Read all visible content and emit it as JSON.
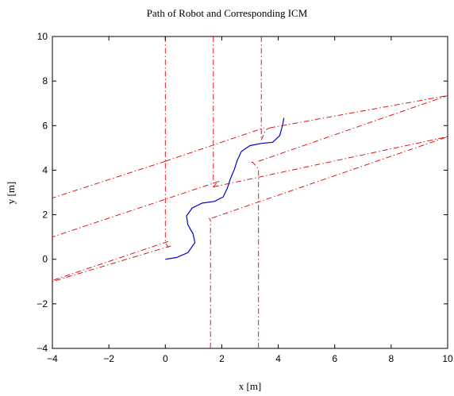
{
  "chart_data": {
    "type": "line",
    "title": "Path of Robot and Corresponding ICM",
    "xlabel": "x [m]",
    "ylabel": "y [m]",
    "xlim": [
      -4,
      10
    ],
    "ylim": [
      -4,
      10
    ],
    "x_ticks": [
      -4,
      -2,
      0,
      2,
      4,
      6,
      8,
      10
    ],
    "y_ticks": [
      -4,
      -2,
      0,
      2,
      4,
      6,
      8,
      10
    ],
    "x_tick_labels": [
      "−4",
      "−2",
      "0",
      "2",
      "4",
      "6",
      "8",
      "10"
    ],
    "y_tick_labels": [
      "−4",
      "−2",
      "0",
      "2",
      "4",
      "6",
      "8",
      "10"
    ],
    "grid": false,
    "legend": "none",
    "series": [
      {
        "role": "robot-path",
        "color": "#0000cc",
        "style": "solid",
        "points": [
          [
            0,
            0
          ],
          [
            0.4,
            0.08
          ],
          [
            0.8,
            0.3
          ],
          [
            1.05,
            0.75
          ],
          [
            0.98,
            1.15
          ],
          [
            0.8,
            1.55
          ],
          [
            0.75,
            1.95
          ],
          [
            0.95,
            2.3
          ],
          [
            1.3,
            2.52
          ],
          [
            1.75,
            2.6
          ],
          [
            2.05,
            2.8
          ],
          [
            2.2,
            3.2
          ],
          [
            2.3,
            3.6
          ],
          [
            2.45,
            4.05
          ],
          [
            2.55,
            4.45
          ],
          [
            2.7,
            4.85
          ],
          [
            3.0,
            5.1
          ],
          [
            3.4,
            5.2
          ],
          [
            3.8,
            5.25
          ],
          [
            4.05,
            5.55
          ],
          [
            4.15,
            6.0
          ],
          [
            4.2,
            6.35
          ]
        ]
      },
      {
        "role": "icm-left",
        "color": "#dd0000",
        "style": "dashdot",
        "segments": [
          [
            [
              0,
              10
            ],
            [
              0,
              0.75
            ],
            [
              0.1,
              0.55
            ],
            [
              0.2,
              0.6
            ]
          ],
          [
            [
              0.2,
              0.6
            ],
            [
              -4,
              -1.0
            ]
          ],
          [
            [
              0.1,
              0.8
            ],
            [
              -4,
              -0.95
            ]
          ]
        ]
      },
      {
        "role": "icm-center",
        "color": "#dd0000",
        "style": "dashdot",
        "segments": [
          [
            [
              1.7,
              10
            ],
            [
              1.7,
              3.25
            ],
            [
              1.8,
              3.4
            ],
            [
              1.9,
              3.5
            ]
          ],
          [
            [
              1.9,
              3.5
            ],
            [
              -4,
              1.0
            ]
          ],
          [
            [
              1.7,
              3.25
            ],
            [
              10,
              5.5
            ]
          ],
          [
            [
              1.6,
              -4
            ],
            [
              1.6,
              1.75
            ],
            [
              1.55,
              1.85
            ]
          ],
          [
            [
              0,
              4.4
            ],
            [
              -4,
              2.75
            ]
          ],
          [
            [
              0,
              4.4
            ],
            [
              3.5,
              5.9
            ]
          ],
          [
            [
              1.65,
              1.85
            ],
            [
              10,
              5.5
            ]
          ]
        ]
      },
      {
        "role": "icm-right",
        "color": "#dd0000",
        "style": "dashdot",
        "segments": [
          [
            [
              3.4,
              10
            ],
            [
              3.4,
              5.35
            ],
            [
              3.55,
              5.8
            ],
            [
              3.7,
              5.9
            ]
          ],
          [
            [
              3.7,
              5.9
            ],
            [
              10,
              7.35
            ]
          ],
          [
            [
              3.3,
              -4
            ],
            [
              3.3,
              4.05
            ],
            [
              3.1,
              4.35
            ],
            [
              2.95,
              4.35
            ]
          ],
          [
            [
              3.3,
              4.4
            ],
            [
              10,
              7.35
            ]
          ]
        ]
      }
    ]
  }
}
